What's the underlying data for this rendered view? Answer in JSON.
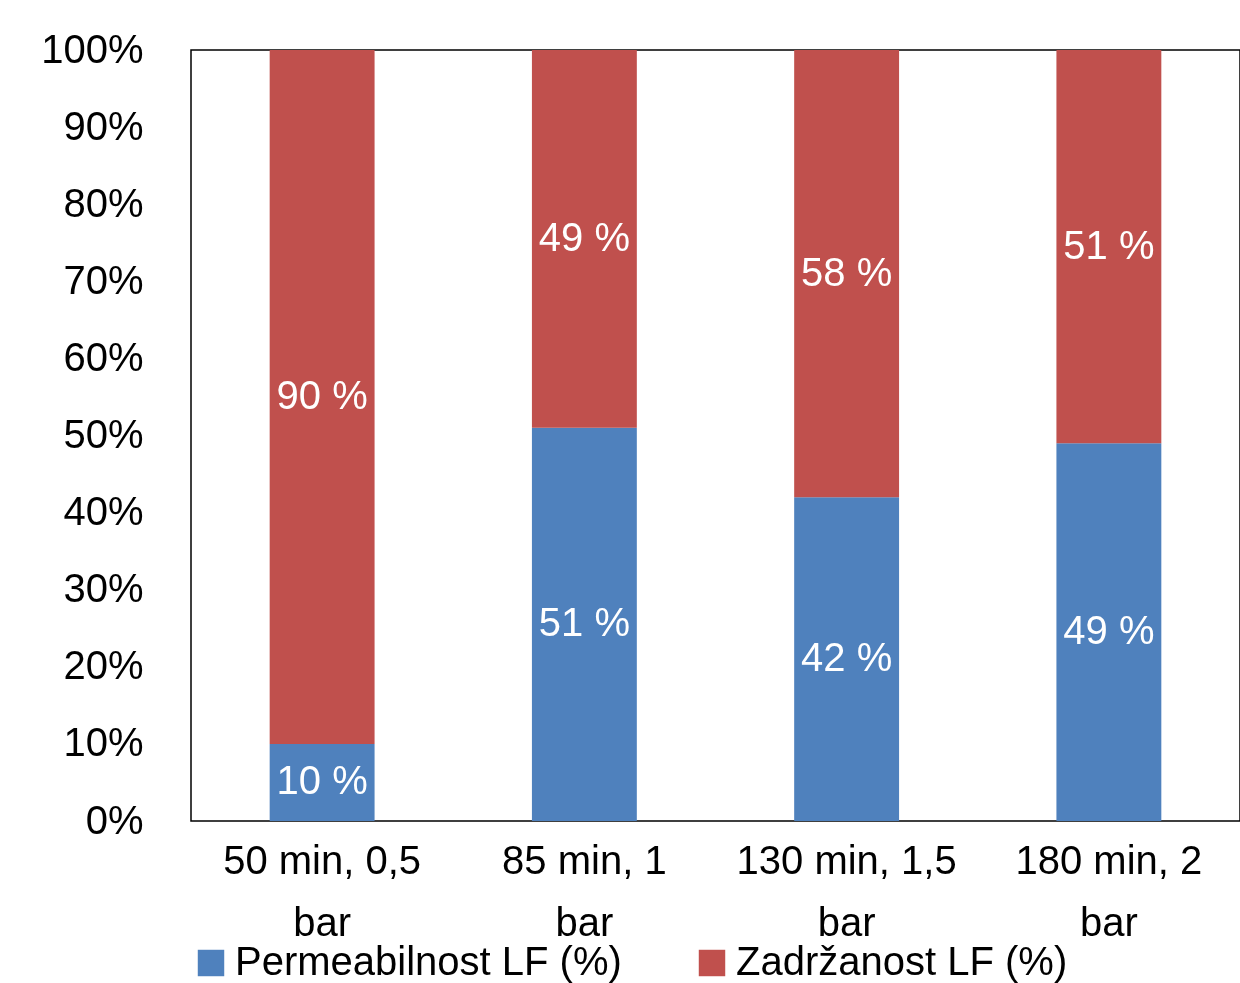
{
  "chart_data": {
    "type": "bar",
    "stacked": true,
    "categories": [
      "50 min, 0,5 bar",
      "85 min, 1 bar",
      "130 min, 1,5 bar",
      "180 min, 2 bar"
    ],
    "series": [
      {
        "name": "Permeabilnost LF (%)",
        "color": "#4f81bd",
        "values": [
          10,
          51,
          42,
          49
        ],
        "value_labels": [
          "10 %",
          "51 %",
          "42 %",
          "49 %"
        ]
      },
      {
        "name": "Zadržanost LF (%)",
        "color": "#c0504d",
        "values": [
          90,
          49,
          58,
          51
        ],
        "value_labels": [
          "90 %",
          "49 %",
          "58 %",
          "51 %"
        ]
      }
    ],
    "ylim": [
      0,
      100
    ],
    "yticks": [
      {
        "value": 0,
        "label": "0%"
      },
      {
        "value": 10,
        "label": "10%"
      },
      {
        "value": 20,
        "label": "20%"
      },
      {
        "value": 30,
        "label": "30%"
      },
      {
        "value": 40,
        "label": "40%"
      },
      {
        "value": 50,
        "label": "50%"
      },
      {
        "value": 60,
        "label": "60%"
      },
      {
        "value": 70,
        "label": "70%"
      },
      {
        "value": 80,
        "label": "80%"
      },
      {
        "value": 90,
        "label": "90%"
      },
      {
        "value": 100,
        "label": "100%"
      }
    ],
    "grid": false,
    "legend": "bottom"
  }
}
